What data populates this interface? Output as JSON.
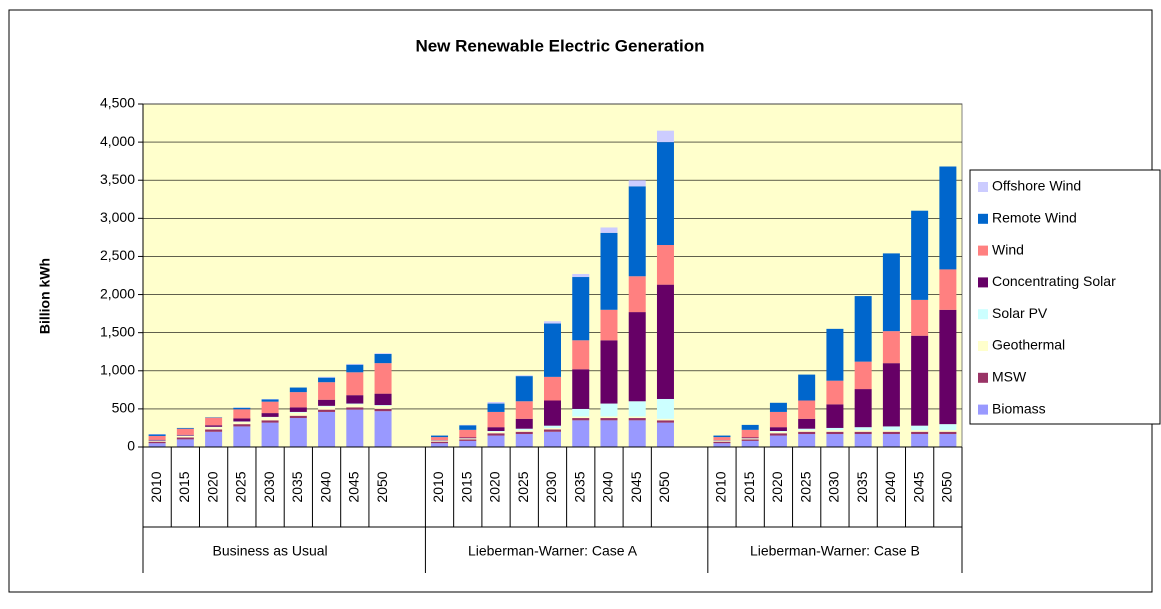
{
  "chart_data": {
    "type": "stacked_bar",
    "title": "New Renewable Electric Generation",
    "ylabel": "Billion kWh",
    "groups": [
      {
        "name": "Business as Usual",
        "categories": [
          "2010",
          "2015",
          "2020",
          "2025",
          "2030",
          "2035",
          "2040",
          "2045",
          "2050"
        ]
      },
      {
        "name": "Lieberman-Warner: Case A",
        "categories": [
          "2010",
          "2015",
          "2020",
          "2025",
          "2030",
          "2035",
          "2040",
          "2045",
          "2050"
        ]
      },
      {
        "name": "Lieberman-Warner: Case B",
        "categories": [
          "2010",
          "2015",
          "2020",
          "2025",
          "2030",
          "2035",
          "2040",
          "2045",
          "2050"
        ]
      }
    ],
    "series": [
      {
        "name": "Biomass",
        "color": "#9999ff",
        "values": [
          50,
          100,
          200,
          270,
          320,
          380,
          460,
          490,
          470,
          50,
          80,
          150,
          170,
          200,
          350,
          350,
          350,
          320,
          50,
          80,
          150,
          170,
          170,
          170,
          170,
          170,
          170
        ]
      },
      {
        "name": "MSW",
        "color": "#993366",
        "values": [
          20,
          25,
          30,
          30,
          30,
          30,
          30,
          30,
          30,
          20,
          20,
          30,
          30,
          30,
          30,
          30,
          30,
          30,
          20,
          20,
          30,
          30,
          30,
          30,
          30,
          30,
          30
        ]
      },
      {
        "name": "Geothermal",
        "color": "#ffffcc",
        "values": [
          10,
          20,
          30,
          30,
          40,
          40,
          40,
          40,
          40,
          10,
          10,
          20,
          20,
          20,
          20,
          20,
          20,
          20,
          10,
          10,
          20,
          20,
          20,
          20,
          20,
          20,
          20
        ]
      },
      {
        "name": "Solar PV",
        "color": "#ccffff",
        "values": [
          5,
          5,
          5,
          5,
          5,
          10,
          10,
          10,
          10,
          5,
          5,
          10,
          20,
          30,
          100,
          170,
          200,
          260,
          5,
          5,
          10,
          20,
          30,
          40,
          50,
          60,
          80
        ]
      },
      {
        "name": "Concentrating  Solar",
        "color": "#660066",
        "values": [
          10,
          10,
          20,
          40,
          50,
          60,
          80,
          110,
          150,
          5,
          10,
          50,
          130,
          330,
          520,
          830,
          1170,
          1500,
          5,
          10,
          50,
          130,
          310,
          500,
          830,
          1180,
          1500
        ]
      },
      {
        "name": "Wind",
        "color": "#ff8080",
        "values": [
          50,
          80,
          100,
          120,
          150,
          200,
          230,
          300,
          400,
          40,
          100,
          200,
          230,
          310,
          380,
          400,
          470,
          520,
          40,
          100,
          200,
          240,
          310,
          360,
          420,
          470,
          530
        ]
      },
      {
        "name": "Remote Wind",
        "color": "#0066cc",
        "values": [
          20,
          10,
          5,
          20,
          30,
          60,
          60,
          100,
          120,
          20,
          60,
          110,
          330,
          700,
          830,
          1010,
          1180,
          1350,
          20,
          65,
          120,
          340,
          680,
          860,
          1020,
          1170,
          1350
        ]
      },
      {
        "name": "Offshore Wind",
        "color": "#ccccff",
        "values": [
          5,
          0,
          0,
          5,
          5,
          0,
          10,
          10,
          10,
          0,
          5,
          20,
          10,
          30,
          40,
          70,
          80,
          150,
          0,
          0,
          0,
          0,
          0,
          0,
          0,
          0,
          0
        ]
      }
    ],
    "ylim": [
      0,
      4500
    ],
    "yticks": [
      0,
      500,
      {
        "value": 1000,
        "label": "1,000"
      },
      {
        "value": 1500,
        "label": "1,500"
      },
      {
        "value": 2000,
        "label": "2,000"
      },
      {
        "value": 2500,
        "label": "2,500"
      },
      {
        "value": 3000,
        "label": "3,000"
      },
      {
        "value": 3500,
        "label": "3,500"
      },
      {
        "value": 4000,
        "label": "4,000"
      },
      {
        "value": 4500,
        "label": "4,500"
      }
    ],
    "grid": true,
    "plot_background": "#ffffcc",
    "legend": "right"
  }
}
